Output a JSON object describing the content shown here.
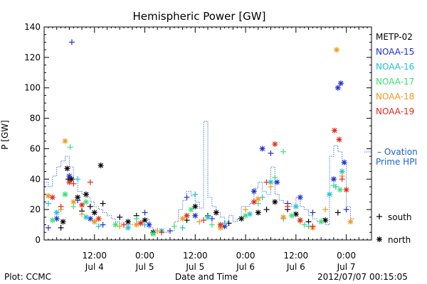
{
  "chart_data": {
    "type": "scatter",
    "title": "Hemispheric Power [GW]",
    "ylabel": "P [GW]",
    "xlabel": "Date and Time",
    "ylim": [
      0,
      140
    ],
    "yticks": [
      0,
      20,
      40,
      60,
      80,
      100,
      120,
      140
    ],
    "xlim_hours": [
      0,
      78
    ],
    "xticks": [
      {
        "hour": 12,
        "time": "12:00",
        "date": "Jul 4"
      },
      {
        "hour": 24,
        "time": "0:00",
        "date": "Jul 5"
      },
      {
        "hour": 36,
        "time": "12:00",
        "date": "Jul 5"
      },
      {
        "hour": 48,
        "time": "0:00",
        "date": "Jul 6"
      },
      {
        "hour": 60,
        "time": "12:00",
        "date": "Jul 6"
      },
      {
        "hour": 72,
        "time": "0:00",
        "date": "Jul 7"
      }
    ],
    "series": [
      {
        "name": "METP-02",
        "color": "#000000",
        "points": [
          [
            4,
            8,
            "+"
          ],
          [
            4.5,
            12,
            "*"
          ],
          [
            5.5,
            47,
            "*"
          ],
          [
            5.8,
            40,
            "+"
          ],
          [
            6.5,
            40,
            "*"
          ],
          [
            8,
            28,
            "*"
          ],
          [
            9,
            19,
            "+"
          ],
          [
            10,
            30,
            "*"
          ],
          [
            11,
            22,
            "+"
          ],
          [
            12,
            18,
            "*"
          ],
          [
            13.5,
            49,
            "*"
          ],
          [
            14,
            24,
            "+"
          ],
          [
            18,
            15,
            "+"
          ],
          [
            20,
            12,
            "*"
          ],
          [
            22,
            16,
            "+"
          ],
          [
            24,
            13,
            "*"
          ],
          [
            26,
            5,
            "*"
          ],
          [
            34,
            13,
            "+"
          ],
          [
            36,
            22,
            "*"
          ],
          [
            39,
            16,
            "+"
          ],
          [
            41,
            18,
            "*"
          ],
          [
            44,
            11,
            "+"
          ],
          [
            47,
            14,
            "*"
          ],
          [
            51,
            18,
            "*"
          ],
          [
            53,
            20,
            "+"
          ],
          [
            55,
            25,
            "*"
          ],
          [
            58,
            20,
            "+"
          ],
          [
            60,
            17,
            "*"
          ],
          [
            63,
            12,
            "+"
          ],
          [
            67,
            13,
            "*"
          ],
          [
            70,
            18,
            "+"
          ]
        ]
      },
      {
        "name": "NOAA-15",
        "color": "#1f2fd0",
        "points": [
          [
            1,
            8,
            "+"
          ],
          [
            3,
            14,
            "*"
          ],
          [
            6,
            42,
            "*"
          ],
          [
            6.6,
            130,
            "+"
          ],
          [
            8,
            26,
            "+"
          ],
          [
            11,
            14,
            "*"
          ],
          [
            14,
            10,
            "+"
          ],
          [
            24,
            18,
            "+"
          ],
          [
            25,
            10,
            "*"
          ],
          [
            30,
            6,
            "+"
          ],
          [
            34,
            28,
            "+"
          ],
          [
            36,
            16,
            "*"
          ],
          [
            40,
            14,
            "+"
          ],
          [
            43,
            9,
            "*"
          ],
          [
            50,
            32,
            "*"
          ],
          [
            52,
            60,
            "*"
          ],
          [
            54,
            57,
            "+"
          ],
          [
            55.5,
            38,
            "*"
          ],
          [
            58,
            24,
            "+"
          ],
          [
            61,
            28,
            "*"
          ],
          [
            64,
            18,
            "+"
          ],
          [
            69,
            40,
            "*"
          ],
          [
            70,
            100,
            "*"
          ],
          [
            70.7,
            103,
            "*"
          ],
          [
            71.5,
            51,
            "*"
          ],
          [
            72,
            20,
            "+"
          ]
        ]
      },
      {
        "name": "NOAA-16",
        "color": "#21c2d2",
        "points": [
          [
            1,
            24,
            "+"
          ],
          [
            3,
            18,
            "*"
          ],
          [
            5,
            30,
            "*"
          ],
          [
            8,
            40,
            "+"
          ],
          [
            10,
            15,
            "*"
          ],
          [
            13,
            9,
            "+"
          ],
          [
            20,
            8,
            "*"
          ],
          [
            24,
            10,
            "+"
          ],
          [
            28,
            6,
            "*"
          ],
          [
            33,
            8,
            "+"
          ],
          [
            36,
            30,
            "+"
          ],
          [
            39,
            15,
            "*"
          ],
          [
            43,
            11,
            "+"
          ],
          [
            49,
            17,
            "*"
          ],
          [
            52,
            28,
            "+"
          ],
          [
            54,
            38,
            "*"
          ],
          [
            57,
            14,
            "+"
          ],
          [
            60,
            22,
            "*"
          ],
          [
            63,
            9,
            "+"
          ],
          [
            68,
            30,
            "*"
          ],
          [
            69.5,
            35,
            "+"
          ],
          [
            71,
            45,
            "*"
          ]
        ]
      },
      {
        "name": "NOAA-17",
        "color": "#3de07a",
        "points": [
          [
            2,
            13,
            "*"
          ],
          [
            5,
            30,
            "*"
          ],
          [
            6.2,
            61,
            "+"
          ],
          [
            7,
            22,
            "+"
          ],
          [
            10,
            25,
            "*"
          ],
          [
            12,
            12,
            "+"
          ],
          [
            17,
            10,
            "*"
          ],
          [
            22,
            14,
            "+"
          ],
          [
            26,
            4,
            "*"
          ],
          [
            31,
            9,
            "+"
          ],
          [
            35,
            20,
            "*"
          ],
          [
            40,
            10,
            "+"
          ],
          [
            48,
            16,
            "*"
          ],
          [
            51,
            24,
            "+"
          ],
          [
            55,
            41,
            "+"
          ],
          [
            57,
            58,
            "+"
          ],
          [
            59,
            16,
            "*"
          ],
          [
            62,
            10,
            "+"
          ],
          [
            66,
            12,
            "*"
          ],
          [
            69,
            36,
            "+"
          ],
          [
            70.5,
            33,
            "*"
          ]
        ]
      },
      {
        "name": "NOAA-18",
        "color": "#f0981e",
        "points": [
          [
            1,
            29,
            "*"
          ],
          [
            4,
            20,
            "+"
          ],
          [
            5,
            65,
            "*"
          ],
          [
            7,
            25,
            "*"
          ],
          [
            9,
            17,
            "+"
          ],
          [
            12,
            12,
            "*"
          ],
          [
            18,
            9,
            "+"
          ],
          [
            22,
            10,
            "*"
          ],
          [
            27,
            6,
            "+"
          ],
          [
            33,
            14,
            "*"
          ],
          [
            37,
            12,
            "+"
          ],
          [
            42,
            8,
            "*"
          ],
          [
            48,
            20,
            "+"
          ],
          [
            51,
            27,
            "*"
          ],
          [
            54,
            35,
            "+"
          ],
          [
            57,
            15,
            "*"
          ],
          [
            61,
            12,
            "+"
          ],
          [
            64,
            8,
            "*"
          ],
          [
            67,
            20,
            "+"
          ],
          [
            69.7,
            125,
            "*"
          ],
          [
            71,
            42,
            "+"
          ],
          [
            73,
            12,
            "*"
          ]
        ]
      },
      {
        "name": "NOAA-19",
        "color": "#e02a1a",
        "points": [
          [
            2,
            28,
            "*"
          ],
          [
            4,
            22,
            "+"
          ],
          [
            6,
            38,
            "*"
          ],
          [
            7,
            37,
            "+"
          ],
          [
            9,
            23,
            "*"
          ],
          [
            11,
            38,
            "+"
          ],
          [
            13,
            14,
            "*"
          ],
          [
            19,
            10,
            "+"
          ],
          [
            23,
            11,
            "*"
          ],
          [
            28,
            5,
            "+"
          ],
          [
            34,
            16,
            "*"
          ],
          [
            38,
            13,
            "+"
          ],
          [
            42,
            10,
            "*"
          ],
          [
            50,
            25,
            "*"
          ],
          [
            53,
            38,
            "+"
          ],
          [
            55,
            63,
            "*"
          ],
          [
            58,
            22,
            "+"
          ],
          [
            61,
            13,
            "*"
          ],
          [
            64,
            9,
            "+"
          ],
          [
            69.2,
            72,
            "*"
          ],
          [
            70.3,
            66,
            "*"
          ],
          [
            71,
            40,
            "+"
          ],
          [
            72,
            33,
            "*"
          ]
        ]
      }
    ],
    "ovation": {
      "name": "Ovation Prime HPI",
      "name_line1": "Ovation",
      "name_line2": "Prime HPI",
      "color": "#1f5fd0",
      "steps": [
        [
          0,
          38
        ],
        [
          1,
          35
        ],
        [
          2,
          42
        ],
        [
          3,
          48
        ],
        [
          4,
          52
        ],
        [
          5,
          55
        ],
        [
          6,
          48
        ],
        [
          7,
          40
        ],
        [
          8,
          32
        ],
        [
          9,
          30
        ],
        [
          10,
          28
        ],
        [
          11,
          25
        ],
        [
          12,
          22
        ],
        [
          13,
          20
        ],
        [
          14,
          18
        ],
        [
          15,
          16
        ],
        [
          16,
          14
        ],
        [
          17,
          12
        ],
        [
          18,
          11
        ],
        [
          19,
          10
        ],
        [
          20,
          10
        ],
        [
          21,
          10
        ],
        [
          22,
          12
        ],
        [
          23,
          12
        ],
        [
          24,
          14
        ],
        [
          25,
          8
        ],
        [
          26,
          7
        ],
        [
          27,
          6
        ],
        [
          28,
          5
        ],
        [
          29,
          5
        ],
        [
          30,
          6
        ],
        [
          31,
          12
        ],
        [
          32,
          20
        ],
        [
          33,
          26
        ],
        [
          34,
          32
        ],
        [
          35,
          29
        ],
        [
          36,
          25
        ],
        [
          37,
          21
        ],
        [
          38,
          78
        ],
        [
          39,
          28
        ],
        [
          40,
          22
        ],
        [
          41,
          18
        ],
        [
          42,
          15
        ],
        [
          43,
          12
        ],
        [
          44,
          16
        ],
        [
          45,
          12
        ],
        [
          46,
          14
        ],
        [
          47,
          22
        ],
        [
          48,
          22
        ],
        [
          49,
          24
        ],
        [
          50,
          34
        ],
        [
          51,
          38
        ],
        [
          52,
          32
        ],
        [
          53,
          30
        ],
        [
          54,
          48
        ],
        [
          55,
          30
        ],
        [
          56,
          26
        ],
        [
          57,
          24
        ],
        [
          58,
          24
        ],
        [
          59,
          22
        ],
        [
          60,
          28
        ],
        [
          61,
          22
        ],
        [
          62,
          20
        ],
        [
          63,
          16
        ],
        [
          64,
          14
        ],
        [
          65,
          12
        ],
        [
          66,
          14
        ],
        [
          67,
          10
        ],
        [
          68,
          55
        ],
        [
          69,
          62
        ],
        [
          70,
          58
        ],
        [
          71,
          50
        ],
        [
          72,
          22
        ],
        [
          73,
          14
        ]
      ]
    },
    "symbol_legend": {
      "plus": "south",
      "star": "north"
    },
    "footer": {
      "left": "Plot: CCMC",
      "right": "2012/07/07 00:15:05"
    }
  }
}
